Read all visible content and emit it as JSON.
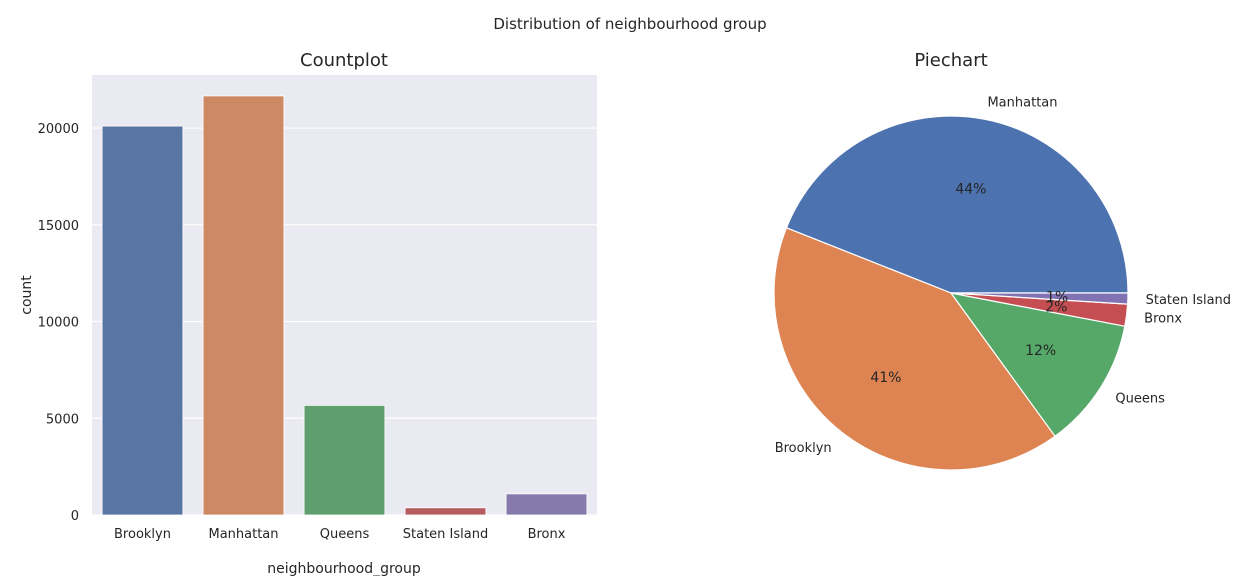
{
  "figure": {
    "suptitle": "Distribution of neighbourhood group"
  },
  "chart_data": [
    {
      "type": "bar",
      "title": "Countplot",
      "xlabel": "neighbourhood_group",
      "ylabel": "count",
      "categories": [
        "Brooklyn",
        "Manhattan",
        "Queens",
        "Staten Island",
        "Bronx"
      ],
      "values": [
        20104,
        21661,
        5666,
        373,
        1091
      ],
      "colors": [
        "#5975a4",
        "#cc8963",
        "#5f9e6e",
        "#b55d60",
        "#857aab"
      ],
      "ylim": [
        0,
        22743
      ],
      "yticks": [
        0,
        5000,
        10000,
        15000,
        20000
      ],
      "background": "#eaeaf2",
      "grid": true
    },
    {
      "type": "pie",
      "title": "Piechart",
      "labels": [
        "Manhattan",
        "Brooklyn",
        "Queens",
        "Bronx",
        "Staten Island"
      ],
      "values": [
        44,
        41,
        12,
        2,
        1
      ],
      "pct_labels": [
        "44%",
        "41%",
        "12%",
        "2%",
        "1%"
      ],
      "colors": [
        "#4c72b0",
        "#dd8452",
        "#55a868",
        "#c44e52",
        "#8172b3"
      ],
      "start_angle_deg": 0,
      "direction": "counterclockwise"
    }
  ]
}
